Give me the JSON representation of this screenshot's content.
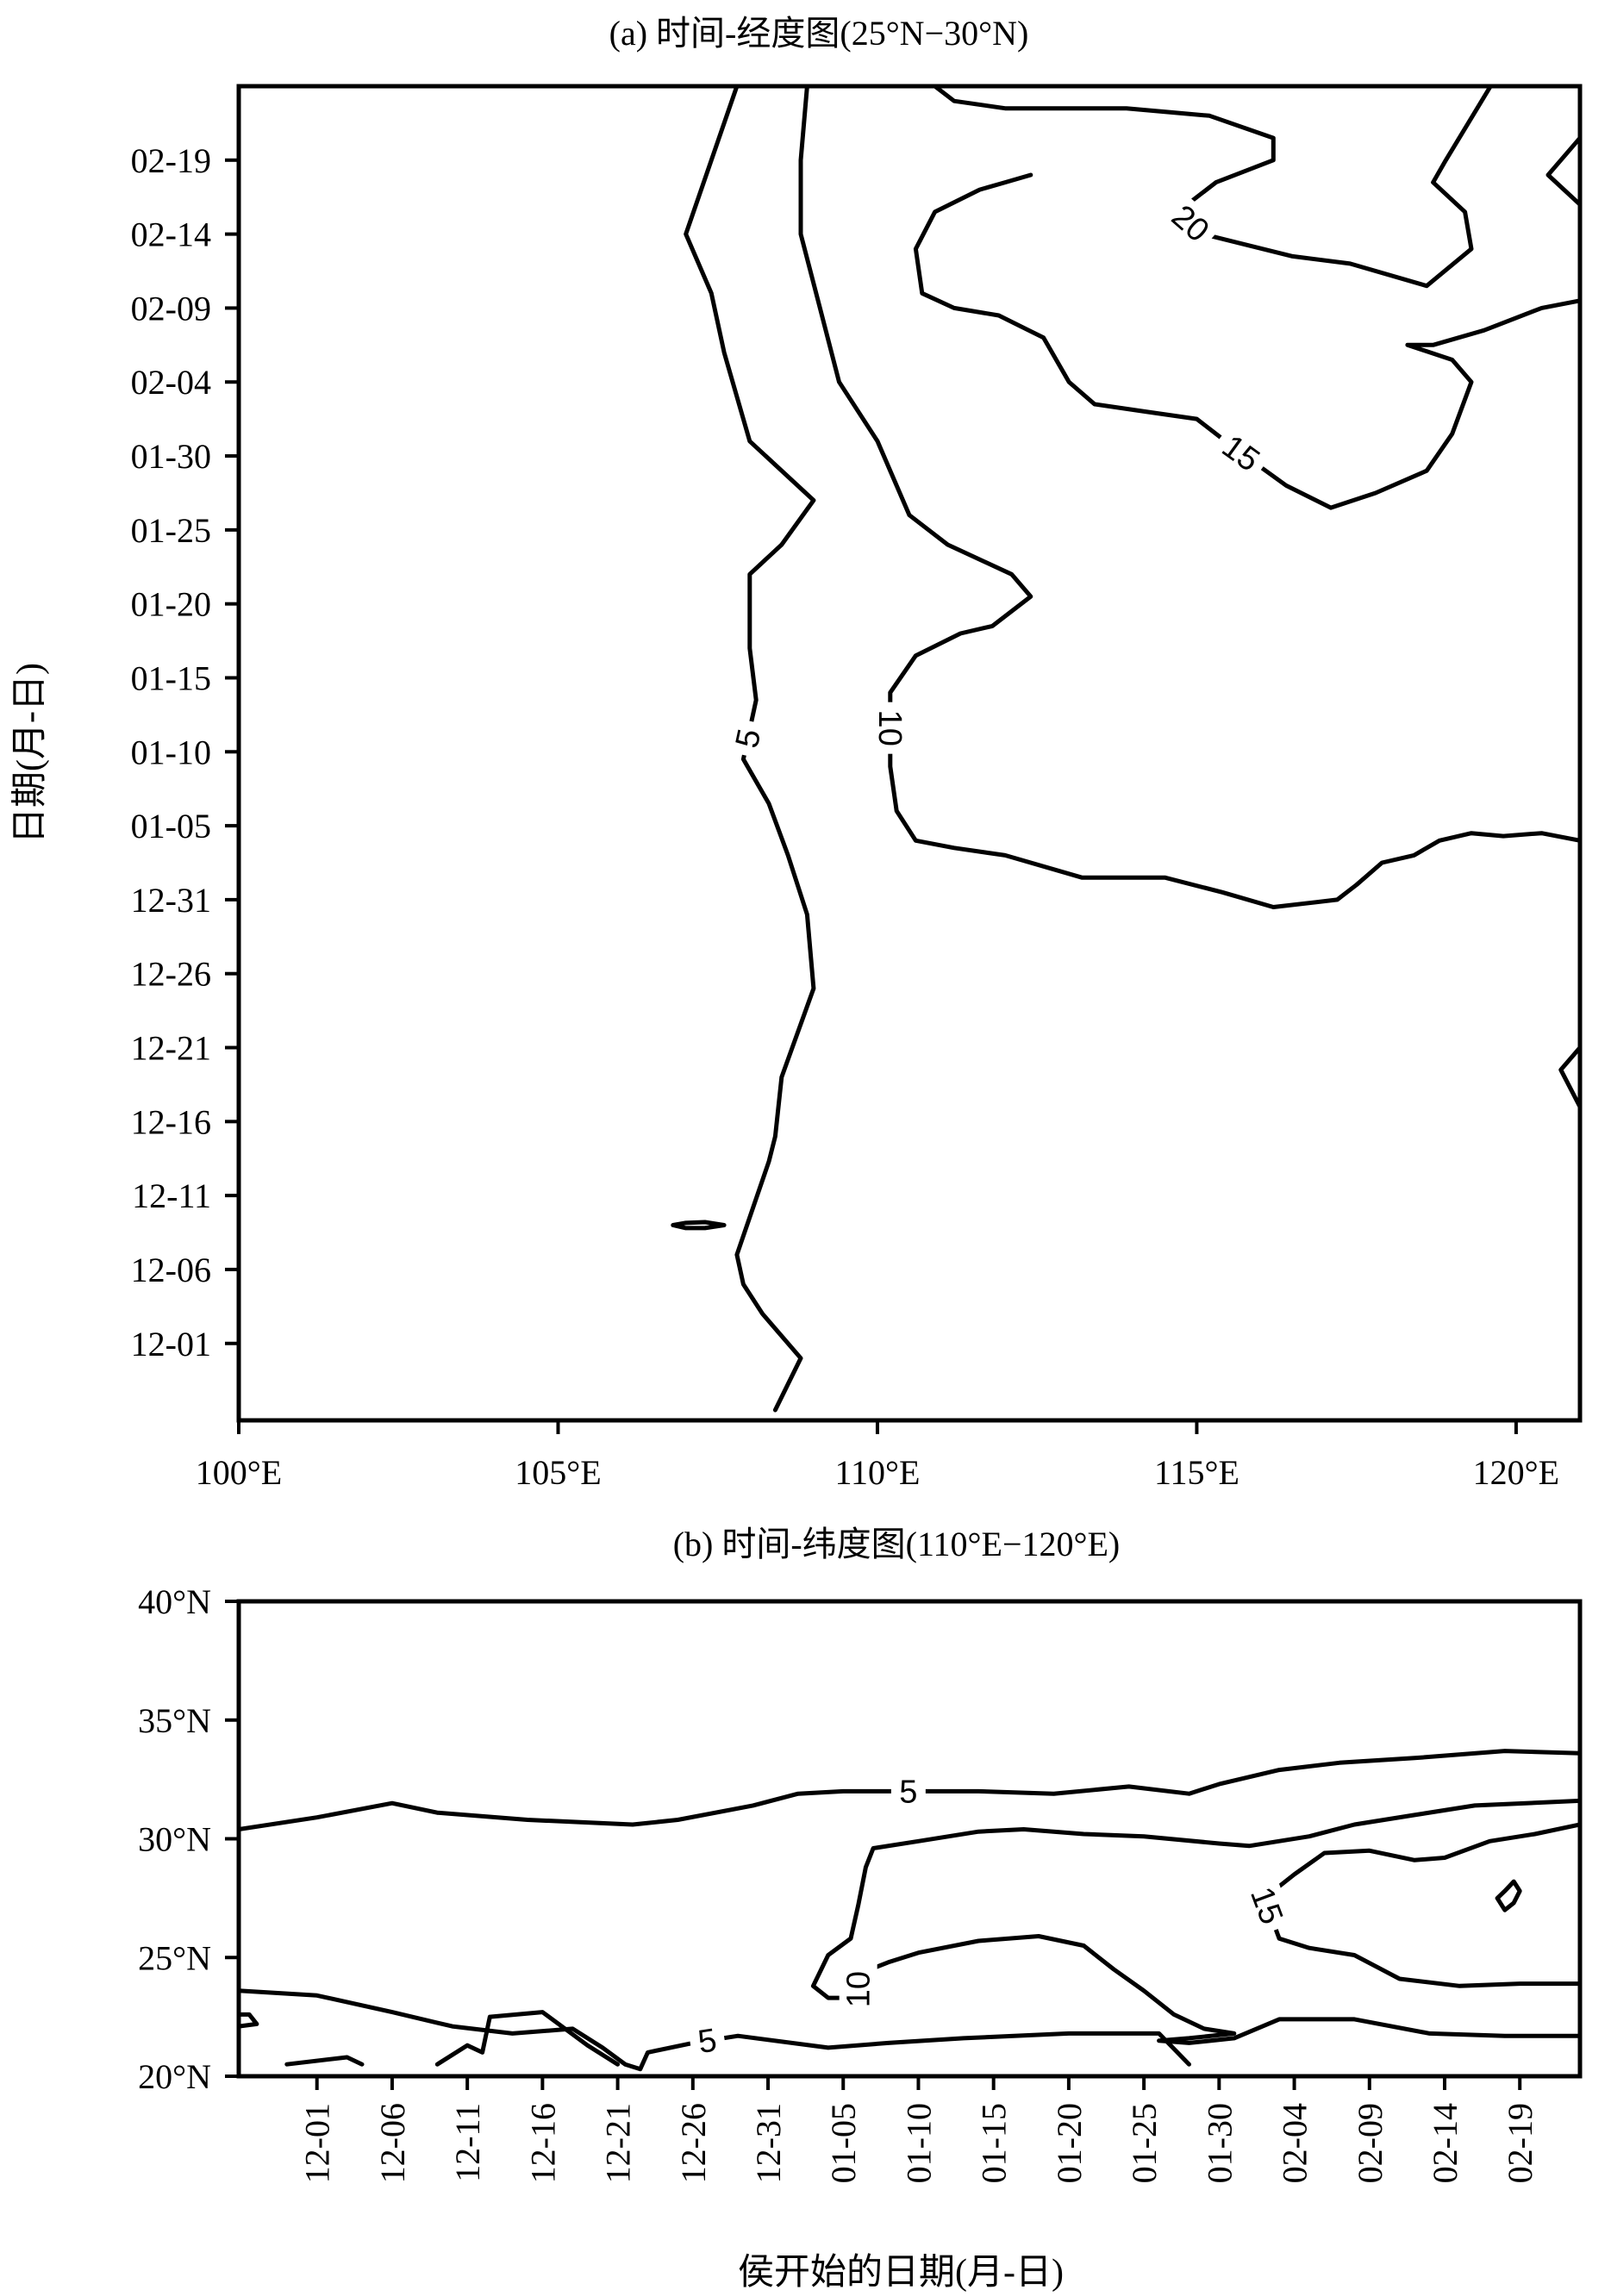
{
  "chart_data": [
    {
      "type": "contour",
      "title": "(a) 时间-经度图(25°N−30°N)",
      "xlabel": "",
      "ylabel": "日期(月-日)",
      "x_ticks": [
        "100°E",
        "105°E",
        "110°E",
        "115°E",
        "120°E"
      ],
      "y_ticks": [
        "12-01",
        "12-06",
        "12-11",
        "12-16",
        "12-21",
        "12-26",
        "12-31",
        "01-05",
        "01-10",
        "01-15",
        "01-20",
        "01-25",
        "01-30",
        "02-04",
        "02-09",
        "02-14",
        "02-19"
      ],
      "contour_levels": [
        5,
        10,
        15,
        20
      ],
      "contours": [
        {
          "label": "5",
          "lon": [
            108.4,
            108.8,
            108.2,
            107.9,
            107.8,
            108.3,
            108.4,
            108.5,
            109.0,
            108.9,
            108.6,
            108.3,
            107.9,
            108.1,
            108.0,
            108.0,
            108.5,
            109.0,
            108.0,
            107.6,
            107.4,
            107.0,
            107.4,
            107.8
          ],
          "y": [
            -4.5,
            -1.0,
            2.0,
            4.0,
            6.0,
            12.3,
            14.0,
            18.0,
            24.0,
            29.0,
            33.0,
            36.5,
            39.5,
            43.5,
            47.0,
            52.0,
            54.0,
            57.0,
            61.0,
            67.0,
            71.0,
            75.0,
            80.0,
            85.0
          ]
        },
        {
          "label": "10",
          "lon": [
            108.9,
            108.8,
            108.8,
            109.1,
            109.4,
            110.0,
            110.5,
            111.1,
            112.1,
            112.4,
            111.8,
            111.3,
            110.6,
            110.2,
            110.2,
            110.3,
            110.6,
            111.2,
            112.0,
            113.2,
            114.5,
            115.4,
            116.2,
            117.2,
            117.5,
            117.9,
            118.4,
            118.8,
            119.3,
            119.8,
            120.4,
            121.0
          ],
          "y": [
            85.0,
            80.0,
            75.0,
            70.0,
            65.0,
            61.0,
            56.0,
            54.0,
            52.0,
            50.5,
            48.5,
            48.0,
            46.5,
            44.0,
            39.0,
            36.0,
            34.0,
            33.5,
            33.0,
            31.5,
            31.5,
            30.5,
            29.5,
            30.0,
            31.0,
            32.5,
            33.0,
            34.0,
            34.5,
            34.3,
            34.5,
            34.0
          ]
        },
        {
          "label": "15",
          "lon": [
            112.4,
            112.0,
            111.6,
            110.9,
            110.6,
            110.7,
            111.2,
            111.9,
            112.6,
            113.0,
            113.4,
            114.2,
            115.0,
            115.6,
            116.4,
            117.1,
            117.8,
            118.6,
            119.0,
            119.3,
            119.0,
            118.3,
            118.7,
            119.5,
            120.4,
            121.0
          ],
          "y": [
            79.0,
            78.5,
            78.0,
            76.5,
            74.0,
            71.0,
            70.0,
            69.5,
            68.0,
            65.0,
            63.5,
            63.0,
            62.5,
            60.5,
            58.0,
            56.5,
            57.5,
            59.0,
            61.5,
            65.0,
            66.5,
            67.5,
            67.5,
            68.5,
            70.0,
            70.5
          ]
        },
        {
          "label": "20",
          "lon": [
            110.9,
            111.2,
            112.0,
            112.8,
            113.9,
            115.2,
            116.2,
            116.2,
            115.3,
            114.7,
            115.1,
            116.5,
            117.4,
            118.6,
            119.3,
            119.2,
            118.7,
            118.9,
            119.6
          ],
          "y": [
            85.0,
            84.0,
            83.5,
            83.5,
            83.5,
            83.0,
            81.5,
            80.0,
            78.5,
            76.5,
            75.0,
            73.5,
            73.0,
            71.5,
            74.0,
            76.5,
            78.5,
            80.0,
            85.0
          ]
        },
        {
          "label": "",
          "lon": [
            121.0,
            120.5,
            121.0
          ],
          "y": [
            81.5,
            79.0,
            77.0
          ]
        },
        {
          "label": "",
          "lon": [
            121.0,
            120.7,
            121.0
          ],
          "y": [
            20.0,
            18.5,
            16.0
          ]
        },
        {
          "label": "",
          "lon": [
            106.8,
            107.0,
            107.3,
            107.6,
            107.3,
            107.0,
            106.8
          ],
          "y": [
            8.0,
            8.15,
            8.2,
            8.0,
            7.8,
            7.8,
            8.0
          ]
        }
      ]
    },
    {
      "type": "contour",
      "title": "(b) 时间-纬度图(110°E−120°E)",
      "xlabel": "侯开始的日期(月-日)",
      "ylabel": "",
      "x_ticks": [
        "12-01",
        "12-06",
        "12-11",
        "12-16",
        "12-21",
        "12-26",
        "12-31",
        "01-05",
        "01-10",
        "01-15",
        "01-20",
        "01-25",
        "01-30",
        "02-04",
        "02-09",
        "02-14",
        "02-19"
      ],
      "y_ticks": [
        "20°N",
        "25°N",
        "30°N",
        "35°N",
        "40°N"
      ],
      "contour_levels": [
        5,
        10,
        15
      ],
      "contours": [
        {
          "label": "5",
          "day": [
            -5.2,
            0.0,
            5.0,
            8.0,
            14.0,
            21.0,
            24.0,
            29.0,
            32.0,
            35.0,
            39.0,
            44.0,
            49.0,
            54.0,
            58.0,
            60.0,
            64.0,
            68.0,
            73.0,
            79.0,
            84.0
          ],
          "lat": [
            30.4,
            30.9,
            31.5,
            31.1,
            30.8,
            30.6,
            30.8,
            31.4,
            31.9,
            32.0,
            32.0,
            32.0,
            31.9,
            32.2,
            31.9,
            32.3,
            32.9,
            33.2,
            33.4,
            33.7,
            33.6
          ]
        },
        {
          "label": "10",
          "day": [
            84.0,
            77.0,
            73.0,
            69.0,
            66.0,
            62.0,
            60.0,
            55.0,
            51.0,
            47.0,
            44.0,
            40.0,
            37.0,
            36.5,
            36.0,
            35.5,
            34.0,
            33.0,
            34.0,
            36.0,
            36.0,
            38.0,
            40.0,
            44.0,
            48.0,
            51.0,
            53.0,
            55.0,
            57.0,
            59.0,
            61.0,
            58.0,
            56.0,
            58.0,
            61.0,
            64.0,
            69.0,
            74.0,
            79.0,
            84.0
          ],
          "lat": [
            31.6,
            31.4,
            31.0,
            30.6,
            30.1,
            29.7,
            29.8,
            30.1,
            30.2,
            30.4,
            30.3,
            29.9,
            29.6,
            28.8,
            27.2,
            25.8,
            25.1,
            23.8,
            23.3,
            23.3,
            24.3,
            24.8,
            25.2,
            25.7,
            25.9,
            25.5,
            24.5,
            23.6,
            22.6,
            22.0,
            21.8,
            21.6,
            21.5,
            21.4,
            21.6,
            22.4,
            22.4,
            21.8,
            21.7,
            21.7
          ]
        },
        {
          "label": "15",
          "day": [
            84.0,
            81.0,
            78.0,
            75.0,
            73.0,
            70.0,
            67.0,
            65.0,
            63.0,
            64.0,
            66.0,
            69.0,
            72.0,
            76.0,
            80.0,
            84.0
          ],
          "lat": [
            30.6,
            30.2,
            29.9,
            29.2,
            29.1,
            29.5,
            29.4,
            28.5,
            27.5,
            25.8,
            25.4,
            25.1,
            24.1,
            23.8,
            23.9,
            23.9
          ]
        },
        {
          "label": "5",
          "day": [
            -5.2,
            0.0,
            5.0,
            9.0,
            13.0,
            17.0,
            19.0,
            20.5,
            21.5,
            22.0,
            25.0,
            28.0,
            34.0,
            38.0,
            43.0,
            50.0,
            56.0,
            58.0
          ],
          "lat": [
            23.6,
            23.4,
            22.7,
            22.1,
            21.8,
            22.0,
            21.2,
            20.5,
            20.3,
            21.0,
            21.4,
            21.7,
            21.2,
            21.4,
            21.6,
            21.8,
            21.8,
            20.5
          ]
        },
        {
          "label": "",
          "day": [
            -5.2,
            -4.5,
            -4.0,
            -5.2
          ],
          "lat": [
            22.6,
            22.6,
            22.2,
            22.1
          ]
        },
        {
          "label": "",
          "day": [
            -2.0,
            2.0,
            3.0
          ],
          "lat": [
            20.5,
            20.8,
            20.5
          ]
        },
        {
          "label": "",
          "day": [
            8.0,
            10.0,
            11.0,
            11.5,
            15.0,
            18.0,
            20.0
          ],
          "lat": [
            20.5,
            21.3,
            21.0,
            22.5,
            22.7,
            21.3,
            20.5
          ]
        },
        {
          "label": "",
          "day": [
            79.0,
            79.6,
            80.0,
            79.6,
            79.0,
            78.5,
            79.0
          ],
          "lat": [
            27.0,
            27.3,
            27.8,
            28.2,
            27.8,
            27.5,
            27.0
          ]
        }
      ]
    }
  ]
}
